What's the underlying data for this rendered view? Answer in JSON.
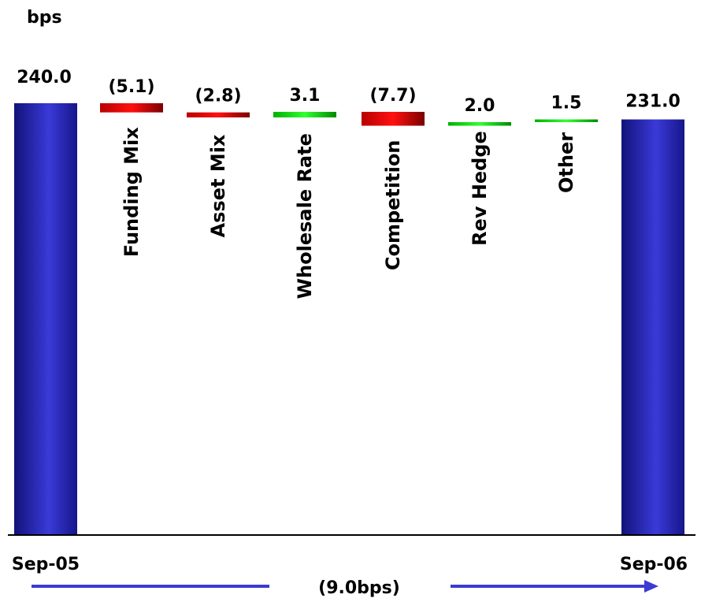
{
  "chart_data": {
    "type": "waterfall",
    "unit_label": "bps",
    "start": {
      "label": "Sep-05",
      "value": 240.0,
      "display": "240.0"
    },
    "end": {
      "label": "Sep-06",
      "value": 231.0,
      "display": "231.0"
    },
    "steps": [
      {
        "category": "Funding Mix",
        "value": -5.1,
        "display": "(5.1)"
      },
      {
        "category": "Asset Mix",
        "value": -2.8,
        "display": "(2.8)"
      },
      {
        "category": "Wholesale Rate",
        "value": 3.1,
        "display": "3.1"
      },
      {
        "category": "Competition",
        "value": -7.7,
        "display": "(7.7)"
      },
      {
        "category": "Rev Hedge",
        "value": 2.0,
        "display": "2.0"
      },
      {
        "category": "Other",
        "value": 1.5,
        "display": "1.5"
      }
    ],
    "total_change_label": "(9.0bps)",
    "colors": {
      "total": "#2b2fb5",
      "negative": "#e00000",
      "positive": "#00d000"
    }
  }
}
